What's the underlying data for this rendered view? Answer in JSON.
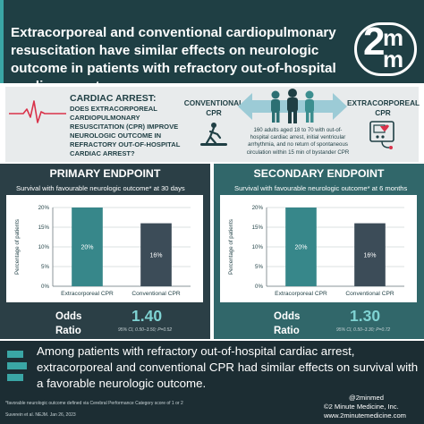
{
  "header": {
    "title": "Extracorporeal and conventional cardiopulmonary resuscitation have similar effects on neurologic outcome in patients with refractory out-of-hospital cardiac arrest",
    "logo_big": "2",
    "logo_top": "m",
    "logo_bottom": "m"
  },
  "design": {
    "heading": "CARDIAC ARREST:",
    "question": "Does extracorporeal cardiopulmonary resuscitation (CPR) improve neurologic outcome in refractory out-of-hospital cardiac arrest?",
    "conventional_label": "CONVENTIONAL CPR",
    "extracorporeal_label": "EXTRACORPOREAL CPR",
    "description": "160 adults aged 18 to 70 with out-of-hospital cardiac arrest, initial ventricular arrhythmia, and no return of spontaneous circulation within 15 min of bystander CPR",
    "icons": [
      "heartbeat-line-icon",
      "cpr-figure-icon",
      "people-group-icon",
      "ecmo-machine-icon"
    ],
    "colors": {
      "header_bg": "#1f3f44",
      "accent": "#3aa6a5",
      "heartbeat": "#d9324a"
    }
  },
  "primary": {
    "heading": "PRIMARY ENDPOINT",
    "subtitle": "Survival with favourable neurologic outcome* at 30 days",
    "odds_label_1": "Odds",
    "odds_label_2": "Ratio",
    "odds_value": "1.40",
    "odds_ci": "95% CI, 0.50–3.50; P=0.52",
    "chart_data": {
      "type": "bar",
      "categories": [
        "Extracorporeal CPR",
        "Conventional CPR"
      ],
      "values": [
        20,
        16
      ],
      "value_labels": [
        "20%",
        "16%"
      ],
      "ylabel": "Percentage of patients",
      "yticks": [
        "0%",
        "5%",
        "10%",
        "15%",
        "20%"
      ],
      "ylim": [
        0,
        20
      ],
      "bar_colors": [
        "#37878a",
        "#3c4c58"
      ],
      "grid": true
    }
  },
  "secondary": {
    "heading": "SECONDARY ENDPOINT",
    "subtitle": "Survival with favourable neurologic outcome* at 6 months",
    "odds_label_1": "Odds",
    "odds_label_2": "Ratio",
    "odds_value": "1.30",
    "odds_ci": "95% CI, 0.50–3.30; P=0.72",
    "chart_data": {
      "type": "bar",
      "categories": [
        "Extracorporeal CPR",
        "Conventional CPR"
      ],
      "values": [
        20,
        16
      ],
      "value_labels": [
        "20%",
        "16%"
      ],
      "ylabel": "Percentage of patients",
      "yticks": [
        "0%",
        "5%",
        "10%",
        "15%",
        "20%"
      ],
      "ylim": [
        0,
        20
      ],
      "bar_colors": [
        "#37878a",
        "#3c4c58"
      ],
      "grid": true
    }
  },
  "conclusion": "Among patients with refractory out-of-hospital cardiac arrest, extracorporeal and conventional CPR had similar effects on survival with a favorable neurologic outcome.",
  "footnote": "*favorable neurologic outcome defined via Cerebral Performance Category score of 1 or 2",
  "citation": "Suverein et al. NEJM. Jan 26, 2023",
  "credits": {
    "handle": "@2minmed",
    "copyright": "©2 Minute Medicine, Inc.",
    "site": "www.2minutemedicine.com"
  }
}
